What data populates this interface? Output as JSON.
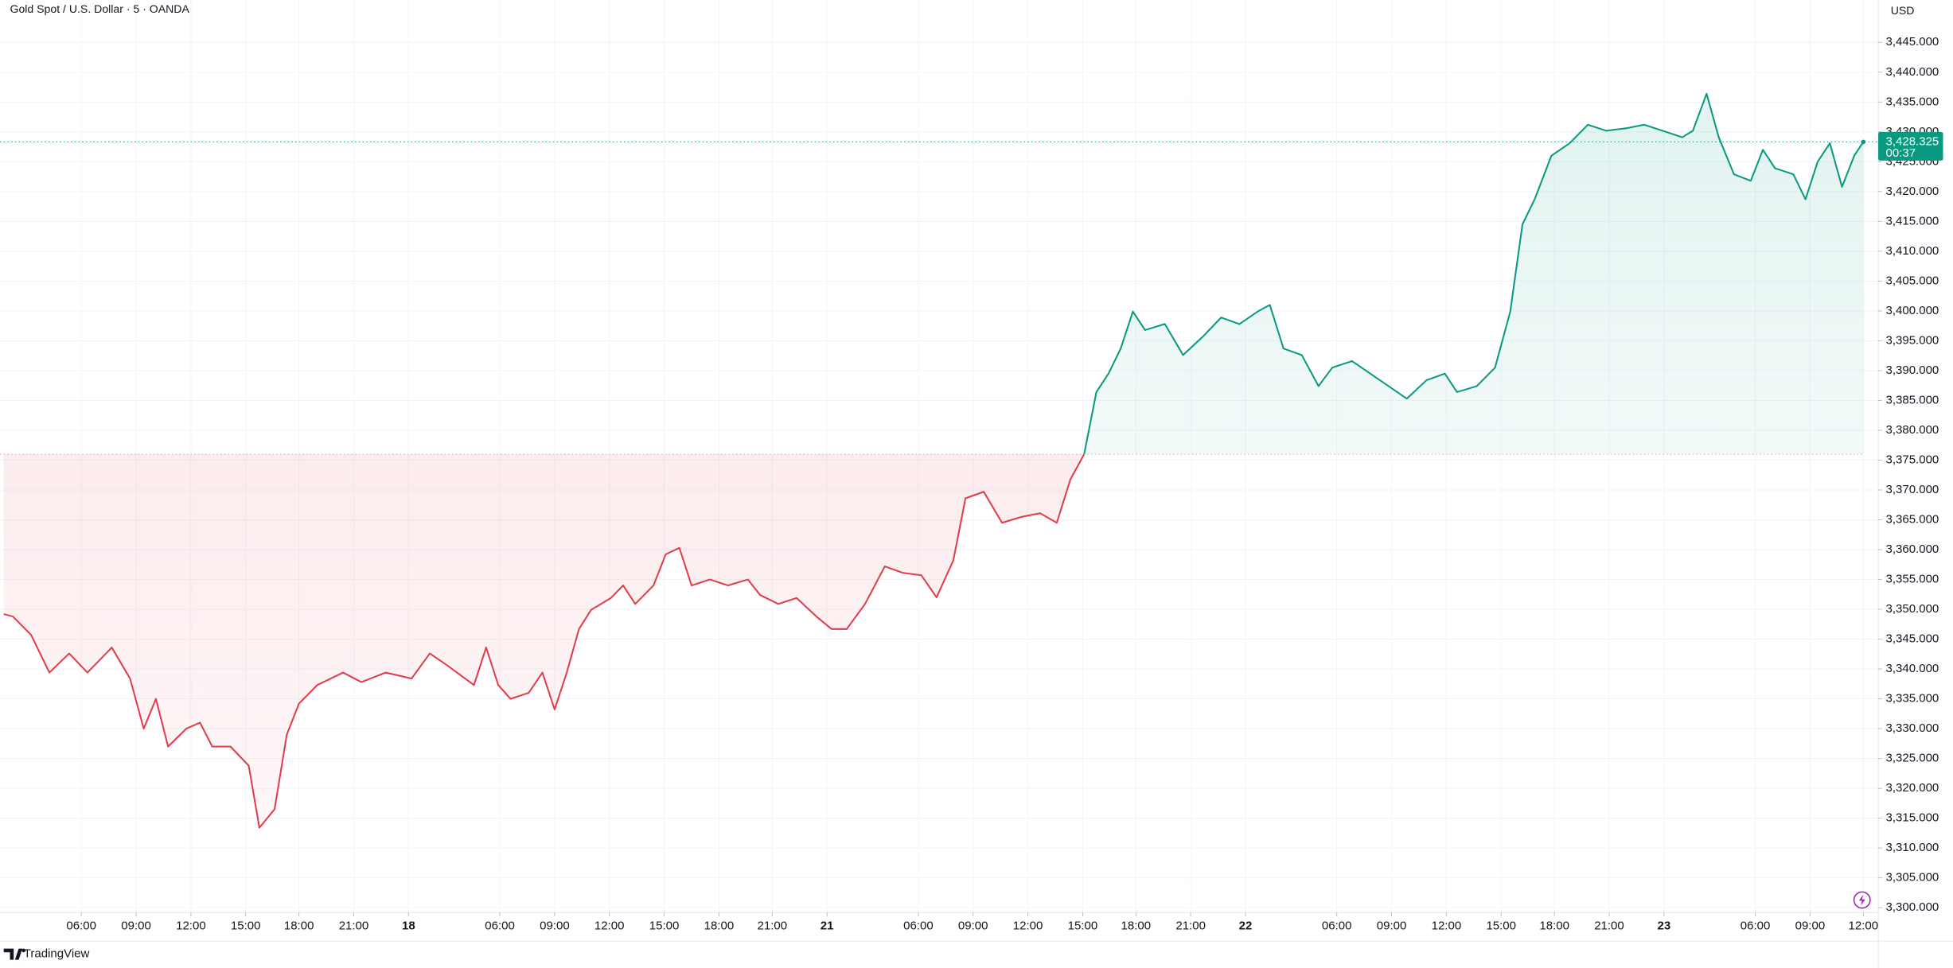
{
  "chart_data": {
    "type": "baseline",
    "title": "Gold Spot / U.S. Dollar · 5 · OANDA",
    "y_axis_label": "USD",
    "brand": "TradingView",
    "countdown": "00:37",
    "baseline": 3376,
    "last_price": {
      "value": 3428.325,
      "label": "3,428.325"
    },
    "color_up": "#089981",
    "color_down": "#e03c4b",
    "grid": true,
    "xlim": [
      0,
      1222
    ],
    "ylim": [
      3299.2,
      3452.1
    ],
    "x": [
      0,
      6,
      18,
      30,
      43,
      55,
      71,
      83,
      92,
      100,
      108,
      120,
      129,
      137,
      149,
      161,
      168,
      178,
      186,
      194,
      206,
      223,
      235,
      251,
      268,
      280,
      292,
      309,
      317,
      325,
      333,
      345,
      354,
      362,
      370,
      378,
      386,
      399,
      407,
      415,
      427,
      435,
      444,
      452,
      464,
      476,
      489,
      497,
      509,
      521,
      534,
      544,
      554,
      566,
      579,
      591,
      603,
      613,
      624,
      632,
      644,
      656,
      669,
      681,
      692,
      701,
      710,
      718,
      726,
      734,
      742,
      750,
      763,
      775,
      788,
      800,
      812,
      824,
      832,
      841,
      853,
      864,
      873,
      886,
      898,
      910,
      922,
      935,
      947,
      955,
      968,
      980,
      990,
      998,
      1006,
      1017,
      1029,
      1041,
      1053,
      1066,
      1078,
      1090,
      1103,
      1110,
      1119,
      1127,
      1137,
      1148,
      1156,
      1164,
      1176,
      1184,
      1192,
      1200,
      1208,
      1216,
      1222
    ],
    "series": [
      {
        "values": [
          3349.2,
          3348.8,
          3345.7,
          3339.4,
          3342.6,
          3339.4,
          3343.6,
          3338.4,
          3330,
          3335,
          3327,
          3330,
          3331,
          3327,
          3327,
          3323.8,
          3313.4,
          3316.5,
          3329,
          3334.2,
          3337.3,
          3339.4,
          3337.8,
          3339.4,
          3338.4,
          3342.6,
          3340.5,
          3337.3,
          3343.6,
          3337.3,
          3335,
          3336,
          3339.4,
          3333.2,
          3339.4,
          3346.7,
          3349.9,
          3351.9,
          3354,
          3350.9,
          3354,
          3359.2,
          3360.3,
          3354,
          3355,
          3354,
          3355,
          3352.4,
          3350.9,
          3351.9,
          3348.8,
          3346.7,
          3346.7,
          3350.9,
          3357.2,
          3356.1,
          3355.7,
          3352,
          3358.2,
          3368.6,
          3369.7,
          3364.5,
          3365.5,
          3366.1,
          3364.5,
          3371.8,
          3376,
          3386.4,
          3389.5,
          3393.7,
          3399.9,
          3396.8,
          3397.8,
          3392.6,
          3395.7,
          3398.9,
          3397.8,
          3399.9,
          3401,
          3393.7,
          3392.6,
          3387.4,
          3390.5,
          3391.6,
          3389.5,
          3387.4,
          3385.3,
          3388.4,
          3389.5,
          3386.4,
          3387.4,
          3390.5,
          3399.9,
          3414.5,
          3418.7,
          3426,
          3428.1,
          3431.2,
          3430.2,
          3430.6,
          3431.2,
          3430.2,
          3429.1,
          3430.2,
          3436.4,
          3429.1,
          3422.9,
          3421.8,
          3427,
          3423.9,
          3422.9,
          3418.7,
          3425,
          3428.1,
          3420.8,
          3426,
          3428.325
        ]
      }
    ],
    "xticks": [
      {
        "value": 51,
        "label": "06:00"
      },
      {
        "value": 87,
        "label": "09:00"
      },
      {
        "value": 123,
        "label": "12:00"
      },
      {
        "value": 159,
        "label": "15:00"
      },
      {
        "value": 194,
        "label": "18:00"
      },
      {
        "value": 230,
        "label": "21:00"
      },
      {
        "value": 266,
        "label": "18"
      },
      {
        "value": 326,
        "label": "06:00"
      },
      {
        "value": 362,
        "label": "09:00"
      },
      {
        "value": 398,
        "label": "12:00"
      },
      {
        "value": 434,
        "label": "15:00"
      },
      {
        "value": 470,
        "label": "18:00"
      },
      {
        "value": 505,
        "label": "21:00"
      },
      {
        "value": 541,
        "label": "21"
      },
      {
        "value": 601,
        "label": "06:00"
      },
      {
        "value": 637,
        "label": "09:00"
      },
      {
        "value": 673,
        "label": "12:00"
      },
      {
        "value": 709,
        "label": "15:00"
      },
      {
        "value": 744,
        "label": "18:00"
      },
      {
        "value": 780,
        "label": "21:00"
      },
      {
        "value": 816,
        "label": "22"
      },
      {
        "value": 876,
        "label": "06:00"
      },
      {
        "value": 912,
        "label": "09:00"
      },
      {
        "value": 948,
        "label": "12:00"
      },
      {
        "value": 984,
        "label": "15:00"
      },
      {
        "value": 1019,
        "label": "18:00"
      },
      {
        "value": 1055,
        "label": "21:00"
      },
      {
        "value": 1091,
        "label": "23"
      },
      {
        "value": 1151,
        "label": "06:00"
      },
      {
        "value": 1187,
        "label": "09:00"
      },
      {
        "value": 1222,
        "label": "12:00"
      }
    ],
    "yticks": [
      {
        "value": 3300,
        "label": "3,300.000"
      },
      {
        "value": 3305,
        "label": "3,305.000"
      },
      {
        "value": 3310,
        "label": "3,310.000"
      },
      {
        "value": 3315,
        "label": "3,315.000"
      },
      {
        "value": 3320,
        "label": "3,320.000"
      },
      {
        "value": 3325,
        "label": "3,325.000"
      },
      {
        "value": 3330,
        "label": "3,330.000"
      },
      {
        "value": 3335,
        "label": "3,335.000"
      },
      {
        "value": 3340,
        "label": "3,340.000"
      },
      {
        "value": 3345,
        "label": "3,345.000"
      },
      {
        "value": 3350,
        "label": "3,350.000"
      },
      {
        "value": 3355,
        "label": "3,355.000"
      },
      {
        "value": 3360,
        "label": "3,360.000"
      },
      {
        "value": 3365,
        "label": "3,365.000"
      },
      {
        "value": 3370,
        "label": "3,370.000"
      },
      {
        "value": 3375,
        "label": "3,375.000"
      },
      {
        "value": 3380,
        "label": "3,380.000"
      },
      {
        "value": 3385,
        "label": "3,385.000"
      },
      {
        "value": 3390,
        "label": "3,390.000"
      },
      {
        "value": 3395,
        "label": "3,395.000"
      },
      {
        "value": 3400,
        "label": "3,400.000"
      },
      {
        "value": 3405,
        "label": "3,405.000"
      },
      {
        "value": 3410,
        "label": "3,410.000"
      },
      {
        "value": 3415,
        "label": "3,415.000"
      },
      {
        "value": 3420,
        "label": "3,420.000"
      },
      {
        "value": 3425,
        "label": "3,425.000"
      },
      {
        "value": 3430,
        "label": "3,430.000"
      },
      {
        "value": 3435,
        "label": "3,435.000"
      },
      {
        "value": 3440,
        "label": "3,440.000"
      },
      {
        "value": 3445,
        "label": "3,445.000"
      }
    ]
  }
}
